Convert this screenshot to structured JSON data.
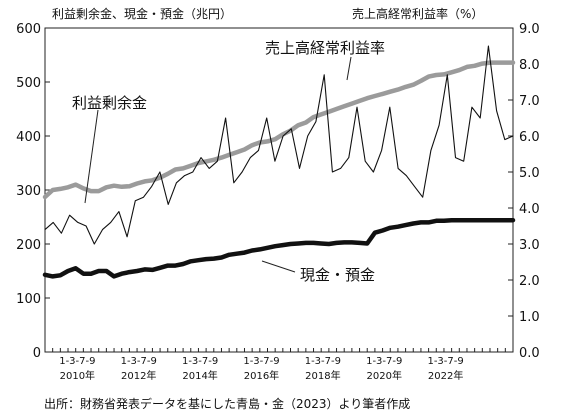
{
  "chart_data": {
    "type": "line",
    "left_axis_title": "利益剰余金、現金・預金（兆円）",
    "right_axis_title": "売上高経常利益率（%）",
    "yleft_ticks": [
      "0",
      "100",
      "200",
      "300",
      "400",
      "500",
      "600"
    ],
    "yright_ticks": [
      "0.0",
      "1.0",
      "2.0",
      "3.0",
      "4.0",
      "5.0",
      "6.0",
      "7.0",
      "8.0",
      "9.0"
    ],
    "ylim_left": [
      0,
      600
    ],
    "ylim_right": [
      0,
      9
    ],
    "x_quarter_labels": [
      "1-3-7-9",
      "1-3-7-9",
      "1-3-7-9",
      "1-3-7-9",
      "1-3-7-9",
      "1-3-7-9",
      "1-3-7-9"
    ],
    "x_year_labels": [
      "2010年",
      "2012年",
      "2014年",
      "2016年",
      "2018年",
      "2020年",
      "2022年"
    ],
    "series": [
      {
        "name": "利益剰余金",
        "axis": "left",
        "values": [
          287,
          300,
          302,
          305,
          310,
          303,
          298,
          298,
          305,
          308,
          306,
          307,
          312,
          316,
          318,
          323,
          330,
          338,
          340,
          345,
          350,
          353,
          356,
          360,
          365,
          370,
          375,
          383,
          388,
          390,
          394,
          403,
          410,
          420,
          425,
          435,
          440,
          445,
          450,
          455,
          460,
          465,
          470,
          474,
          478,
          482,
          486,
          491,
          495,
          502,
          510,
          513,
          514,
          518,
          522,
          528,
          530,
          534,
          536,
          536,
          536,
          536
        ]
      },
      {
        "name": "現金・預金",
        "axis": "left",
        "values": [
          143,
          140,
          142,
          150,
          155,
          145,
          145,
          150,
          150,
          140,
          145,
          148,
          150,
          153,
          152,
          156,
          160,
          160,
          163,
          168,
          170,
          172,
          173,
          175,
          180,
          182,
          184,
          188,
          190,
          193,
          196,
          198,
          200,
          201,
          202,
          202,
          201,
          200,
          202,
          203,
          203,
          202,
          201,
          221,
          225,
          230,
          232,
          235,
          238,
          240,
          240,
          243,
          243,
          244,
          244,
          244,
          244,
          244,
          244,
          244,
          244,
          244
        ]
      },
      {
        "name": "売上高経常利益率",
        "axis": "right",
        "values": [
          3.4,
          3.6,
          3.3,
          3.8,
          3.6,
          3.5,
          3.0,
          3.4,
          3.6,
          3.9,
          3.2,
          4.2,
          4.3,
          4.6,
          5.0,
          4.1,
          4.7,
          4.9,
          5.0,
          5.4,
          5.1,
          5.3,
          6.5,
          4.7,
          5.0,
          5.4,
          5.6,
          6.5,
          5.3,
          6.0,
          6.2,
          5.1,
          6.0,
          6.4,
          7.7,
          5.0,
          5.1,
          5.4,
          6.8,
          5.3,
          5.0,
          5.6,
          6.8,
          5.1,
          4.9,
          4.6,
          4.3,
          5.6,
          6.3,
          7.7,
          5.4,
          5.3,
          6.8,
          6.5,
          8.5,
          6.7,
          5.9,
          6.0
        ]
      }
    ],
    "annotations": [
      {
        "text": "売上高経常利益率"
      },
      {
        "text": "利益剰余金"
      },
      {
        "text": "現金・預金"
      }
    ],
    "grid": false
  },
  "footer": "出所：財務省発表データを基にした青島・金（2023）より筆者作成"
}
